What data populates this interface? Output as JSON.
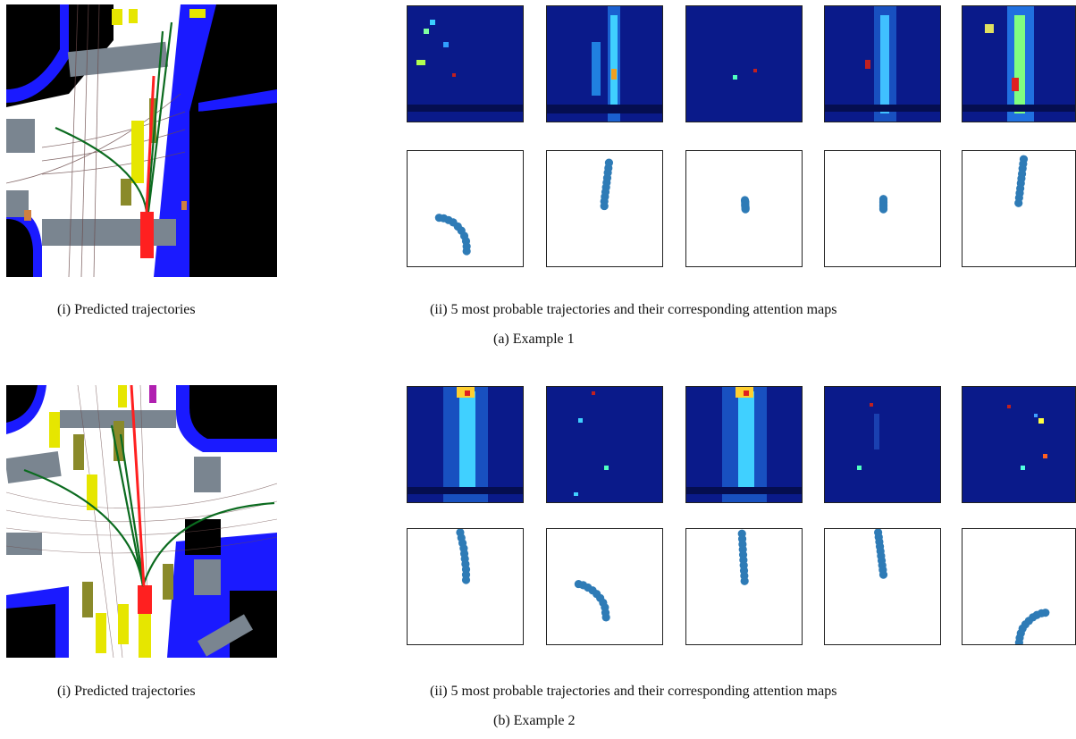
{
  "example1": {
    "left_caption": "(i) Predicted trajectories",
    "right_caption": "(ii) 5 most probable trajectories and their corresponding attention maps",
    "sub_caption": "(a) Example 1"
  },
  "example2": {
    "left_caption": "(i) Predicted trajectories",
    "right_caption": "(ii) 5 most probable trajectories and their corresponding attention maps",
    "sub_caption": "(b) Example 2"
  },
  "colors": {
    "trajectory_point": "#2e7bb6",
    "heat_background": "#0a1a8a",
    "road": "#ffffff",
    "lane_blue": "#1a1aff",
    "crosswalk": "#7a8590",
    "ego_vehicle": "#ff2020",
    "other_vehicle": "#e6e600",
    "prediction_line": "#0b6b1f"
  },
  "chart_data": [
    {
      "type": "scatter",
      "title": "Example 1 trajectories",
      "series": [
        {
          "values": [
            [
              -4.6,
              -1.4
            ],
            [
              -3.8,
              -1.5
            ],
            [
              -3.0,
              -1.8
            ],
            [
              -2.2,
              -2.2
            ],
            [
              -1.4,
              -2.9
            ],
            [
              -0.8,
              -3.6
            ],
            [
              -0.3,
              -4.5
            ],
            [
              0.0,
              -5.4
            ],
            [
              0.1,
              -6.3
            ],
            [
              0.1,
              -7.1
            ]
          ]
        },
        {
          "values": [
            [
              0.6,
              8.0
            ],
            [
              0.5,
              7.1
            ],
            [
              0.4,
              6.3
            ],
            [
              0.3,
              5.4
            ],
            [
              0.2,
              4.6
            ],
            [
              0.1,
              3.8
            ],
            [
              0.0,
              3.0
            ],
            [
              -0.1,
              2.2
            ],
            [
              -0.2,
              1.4
            ],
            [
              -0.2,
              0.6
            ]
          ]
        },
        {
          "values": [
            [
              0.0,
              1.6
            ],
            [
              0.05,
              1.4
            ],
            [
              0.05,
              1.2
            ],
            [
              0.05,
              1.0
            ],
            [
              0.05,
              0.8
            ],
            [
              0.05,
              0.6
            ],
            [
              0.1,
              0.4
            ],
            [
              0.1,
              0.2
            ],
            [
              0.1,
              0.05
            ]
          ]
        },
        {
          "values": [
            [
              0.0,
              1.8
            ],
            [
              0.0,
              1.6
            ],
            [
              0.0,
              1.4
            ],
            [
              0.0,
              1.2
            ],
            [
              0.0,
              1.0
            ],
            [
              0.0,
              0.8
            ],
            [
              0.0,
              0.6
            ],
            [
              0.0,
              0.4
            ],
            [
              0.0,
              0.2
            ],
            [
              0.0,
              0.05
            ]
          ]
        },
        {
          "values": [
            [
              0.7,
              8.6
            ],
            [
              0.6,
              7.8
            ],
            [
              0.5,
              7.0
            ],
            [
              0.4,
              6.1
            ],
            [
              0.3,
              5.3
            ],
            [
              0.2,
              4.5
            ],
            [
              0.1,
              3.6
            ],
            [
              0.0,
              2.8
            ],
            [
              -0.1,
              2.0
            ],
            [
              -0.2,
              1.1
            ]
          ]
        }
      ]
    },
    {
      "type": "scatter",
      "title": "Example 2 trajectories",
      "series": [
        {
          "values": [
            [
              -1.0,
              9.4
            ],
            [
              -0.8,
              8.5
            ],
            [
              -0.6,
              7.6
            ],
            [
              -0.4,
              6.7
            ],
            [
              -0.3,
              5.8
            ],
            [
              -0.2,
              4.9
            ],
            [
              -0.1,
              4.0
            ],
            [
              0.0,
              3.1
            ],
            [
              0.0,
              2.2
            ],
            [
              0.0,
              1.3
            ]
          ]
        },
        {
          "values": [
            [
              -4.6,
              0.6
            ],
            [
              -3.8,
              0.4
            ],
            [
              -3.0,
              0.0
            ],
            [
              -2.2,
              -0.5
            ],
            [
              -1.5,
              -1.1
            ],
            [
              -0.9,
              -1.8
            ],
            [
              -0.4,
              -2.6
            ],
            [
              -0.1,
              -3.4
            ],
            [
              0.0,
              -4.3
            ],
            [
              0.1,
              -5.1
            ]
          ]
        },
        {
          "values": [
            [
              -0.5,
              9.2
            ],
            [
              -0.45,
              8.3
            ],
            [
              -0.4,
              7.4
            ],
            [
              -0.35,
              6.5
            ],
            [
              -0.3,
              5.6
            ],
            [
              -0.25,
              4.7
            ],
            [
              -0.2,
              3.8
            ],
            [
              -0.15,
              2.9
            ],
            [
              -0.1,
              2.0
            ],
            [
              -0.05,
              1.1
            ]
          ]
        },
        {
          "values": [
            [
              -0.9,
              9.4
            ],
            [
              -0.8,
              8.6
            ],
            [
              -0.7,
              7.8
            ],
            [
              -0.6,
              7.0
            ],
            [
              -0.5,
              6.2
            ],
            [
              -0.4,
              5.4
            ],
            [
              -0.3,
              4.6
            ],
            [
              -0.2,
              3.8
            ],
            [
              -0.1,
              3.0
            ],
            [
              0.0,
              2.2
            ]
          ]
        },
        {
          "values": [
            [
              4.5,
              -4.3
            ],
            [
              3.8,
              -4.4
            ],
            [
              3.0,
              -4.7
            ],
            [
              2.3,
              -5.1
            ],
            [
              1.6,
              -5.7
            ],
            [
              1.0,
              -6.3
            ],
            [
              0.5,
              -7.0
            ],
            [
              0.2,
              -7.8
            ],
            [
              0.0,
              -8.6
            ],
            [
              -0.1,
              -9.4
            ]
          ]
        }
      ]
    }
  ]
}
